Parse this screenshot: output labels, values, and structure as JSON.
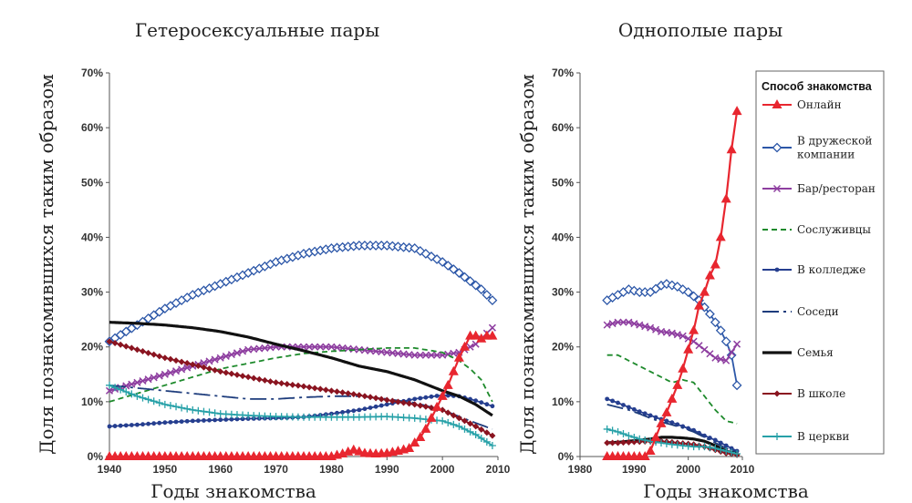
{
  "chart_data": [
    {
      "type": "line",
      "title": "Гетеросексуальные пары",
      "xlabel": "Годы знакомства",
      "ylabel": "Доля познакомившихся таким образом",
      "xlim": [
        1940,
        2010
      ],
      "ylim": [
        0,
        70
      ],
      "xticks": [
        "1940",
        "1950",
        "1960",
        "1970",
        "1980",
        "1990",
        "2000",
        "2010"
      ],
      "yticks": [
        "0%",
        "10%",
        "20%",
        "30%",
        "40%",
        "50%",
        "60%",
        "70%"
      ],
      "series": [
        {
          "name": "Онлайн",
          "x": [
            1940,
            1950,
            1960,
            1970,
            1975,
            1980,
            1982,
            1984,
            1986,
            1988,
            1990,
            1992,
            1994,
            1995,
            1996,
            1997,
            1998,
            1999,
            2000,
            2001,
            2002,
            2003,
            2004,
            2005,
            2006,
            2007,
            2008,
            2009
          ],
          "values": [
            0,
            0,
            0,
            0,
            0,
            0,
            0.5,
            1.2,
            0.6,
            0.5,
            0.6,
            1.0,
            1.5,
            2.5,
            3.5,
            5,
            7,
            9,
            11,
            13,
            15.5,
            18,
            20,
            22,
            22,
            21.5,
            22,
            22
          ]
        },
        {
          "name": "В дружеской компании",
          "x": [
            1940,
            1945,
            1950,
            1955,
            1960,
            1965,
            1970,
            1975,
            1980,
            1985,
            1990,
            1995,
            2000,
            2003,
            2005,
            2007,
            2009
          ],
          "values": [
            21,
            24,
            27,
            29.5,
            31.5,
            33.5,
            35.5,
            37,
            38,
            38.5,
            38.5,
            38,
            35.5,
            33.5,
            32,
            30.5,
            28.5
          ]
        },
        {
          "name": "Бар/ресторан",
          "x": [
            1940,
            1945,
            1950,
            1955,
            1960,
            1965,
            1970,
            1975,
            1980,
            1985,
            1990,
            1995,
            2000,
            2003,
            2006,
            2009
          ],
          "values": [
            12,
            13.5,
            15,
            16.5,
            18,
            19.5,
            20,
            20,
            20,
            19.5,
            19,
            18.5,
            18.5,
            19,
            20.5,
            23.5
          ]
        },
        {
          "name": "Сослуживцы",
          "x": [
            1940,
            1945,
            1950,
            1955,
            1960,
            1965,
            1970,
            1975,
            1980,
            1985,
            1990,
            1995,
            2000,
            2003,
            2005,
            2007,
            2009
          ],
          "values": [
            10,
            11.5,
            13,
            14.5,
            16,
            17,
            18,
            18.8,
            19.2,
            19.5,
            19.8,
            19.8,
            19,
            17.5,
            16,
            14,
            10
          ]
        },
        {
          "name": "В колледже",
          "x": [
            1940,
            1945,
            1950,
            1955,
            1960,
            1965,
            1970,
            1975,
            1980,
            1985,
            1990,
            1995,
            2000,
            2003,
            2006,
            2009
          ],
          "values": [
            5.5,
            5.8,
            6.2,
            6.5,
            6.7,
            6.9,
            7,
            7.2,
            7.8,
            8.5,
            9.5,
            10.5,
            11.2,
            11,
            10.2,
            9.2
          ]
        },
        {
          "name": "Соседи",
          "x": [
            1940,
            1945,
            1950,
            1955,
            1960,
            1965,
            1970,
            1975,
            1980,
            1985,
            1990,
            1995,
            2000,
            2005,
            2009
          ],
          "values": [
            13,
            12.5,
            12,
            11.5,
            11,
            10.5,
            10.5,
            10.8,
            11,
            11,
            10.5,
            9.8,
            8.5,
            6.5,
            5
          ]
        },
        {
          "name": "Семья",
          "x": [
            1940,
            1945,
            1950,
            1955,
            1960,
            1965,
            1970,
            1975,
            1980,
            1985,
            1990,
            1995,
            2000,
            2003,
            2006,
            2009
          ],
          "values": [
            24.5,
            24.3,
            24,
            23.5,
            22.8,
            21.8,
            20.5,
            19.3,
            18,
            16.5,
            15.5,
            14,
            12,
            11,
            9.5,
            7.5
          ]
        },
        {
          "name": "В школе",
          "x": [
            1940,
            1945,
            1950,
            1955,
            1960,
            1965,
            1970,
            1975,
            1980,
            1985,
            1990,
            1995,
            2000,
            2003,
            2006,
            2009
          ],
          "values": [
            21,
            19.5,
            18,
            16.8,
            15.5,
            14.5,
            13.5,
            12.8,
            12,
            11.2,
            10.3,
            9.5,
            8.5,
            7,
            5.5,
            3.8
          ]
        },
        {
          "name": "В церкви",
          "x": [
            1940,
            1945,
            1950,
            1955,
            1960,
            1965,
            1970,
            1975,
            1980,
            1985,
            1990,
            1995,
            2000,
            2003,
            2006,
            2009
          ],
          "values": [
            13,
            11,
            9.5,
            8.5,
            7.8,
            7.5,
            7.3,
            7.2,
            7.2,
            7.2,
            7.3,
            7,
            6.5,
            5.5,
            4,
            2
          ]
        }
      ]
    },
    {
      "type": "line",
      "title": "Однополые пары",
      "xlabel": "Годы знакомства",
      "ylabel": "Доля познакомившихся таким образом",
      "xlim": [
        1980,
        2010
      ],
      "ylim": [
        0,
        70
      ],
      "xticks": [
        "1980",
        "1990",
        "2000",
        "2010"
      ],
      "yticks": [
        "0%",
        "10%",
        "20%",
        "30%",
        "40%",
        "50%",
        "60%",
        "70%"
      ],
      "legend_title": "Способ знакомства",
      "legend_position": "right",
      "series": [
        {
          "name": "Онлайн",
          "x": [
            1985,
            1986,
            1987,
            1988,
            1989,
            1990,
            1991,
            1992,
            1993,
            1994,
            1995,
            1996,
            1997,
            1998,
            1999,
            2000,
            2001,
            2002,
            2003,
            2004,
            2005,
            2006,
            2007,
            2008,
            2009
          ],
          "values": [
            0,
            0,
            0,
            0,
            0,
            0,
            0,
            0,
            1,
            3.5,
            6,
            8,
            10.5,
            13,
            16,
            19.5,
            23,
            27.5,
            30,
            33,
            35,
            40,
            47,
            56,
            63
          ]
        },
        {
          "name": "В дружеской компании",
          "x": [
            1985,
            1987,
            1989,
            1991,
            1993,
            1995,
            1996,
            1998,
            2000,
            2002,
            2004,
            2006,
            2007,
            2008,
            2009
          ],
          "values": [
            28.5,
            29.5,
            30.5,
            30,
            30,
            31.2,
            31.5,
            31,
            30,
            28.5,
            26,
            23,
            21,
            18.5,
            13
          ]
        },
        {
          "name": "Бар/ресторан",
          "x": [
            1985,
            1987,
            1989,
            1991,
            1993,
            1995,
            1997,
            1999,
            2001,
            2003,
            2005,
            2007,
            2009
          ],
          "values": [
            24,
            24.5,
            24.5,
            24,
            23.5,
            22.8,
            22.5,
            22,
            21,
            19.5,
            18,
            17.5,
            20.5
          ]
        },
        {
          "name": "Сослуживцы",
          "x": [
            1985,
            1987,
            1989,
            1991,
            1993,
            1995,
            1997,
            1999,
            2001,
            2003,
            2005,
            2007,
            2009
          ],
          "values": [
            18.5,
            18.5,
            17.5,
            16.5,
            15.5,
            14.5,
            13.5,
            14,
            13.5,
            11,
            8.5,
            6.5,
            6
          ]
        },
        {
          "name": "В колледже",
          "x": [
            1985,
            1987,
            1989,
            1991,
            1993,
            1995,
            1997,
            1999,
            2001,
            2003,
            2005,
            2007,
            2009
          ],
          "values": [
            10.5,
            9.8,
            9,
            8.2,
            7.5,
            6.8,
            6.2,
            5.5,
            4.8,
            3.8,
            3,
            2,
            1
          ]
        },
        {
          "name": "Соседи",
          "x": [
            1985,
            1987,
            1989,
            1991,
            1993,
            1995,
            1997,
            1999,
            2001,
            2003,
            2005,
            2007,
            2009
          ],
          "values": [
            9.5,
            9,
            8.5,
            7.8,
            7,
            6.3,
            5.8,
            5.2,
            4.5,
            3.5,
            2.5,
            1.5,
            0.8
          ]
        },
        {
          "name": "Семья",
          "x": [
            1985,
            1987,
            1989,
            1991,
            1993,
            1995,
            1997,
            1999,
            2001,
            2003,
            2005,
            2007,
            2009
          ],
          "values": [
            2.5,
            2.6,
            2.8,
            3,
            3.2,
            3.5,
            3.5,
            3.4,
            3.2,
            2.8,
            2,
            1,
            0.5
          ]
        },
        {
          "name": "В школе",
          "x": [
            1985,
            1987,
            1989,
            1991,
            1993,
            1995,
            1997,
            1999,
            2001,
            2003,
            2005,
            2007,
            2009
          ],
          "values": [
            2.5,
            2.5,
            2.6,
            2.7,
            2.8,
            2.8,
            2.6,
            2.4,
            2.2,
            1.8,
            1.2,
            0.6,
            0.3
          ]
        },
        {
          "name": "В церкви",
          "x": [
            1985,
            1987,
            1989,
            1991,
            1993,
            1995,
            1997,
            1999,
            2001,
            2003,
            2005,
            2007,
            2009
          ],
          "values": [
            5,
            4.5,
            3.8,
            3.2,
            2.8,
            2.5,
            2.2,
            2,
            1.8,
            1.8,
            1.5,
            1,
            0.5
          ]
        }
      ]
    }
  ],
  "styles": [
    {
      "name": "Онлайн",
      "color": "#e8262f",
      "marker": "triangle",
      "dash": ""
    },
    {
      "name": "В дружеской компании",
      "color": "#2c57a8",
      "marker": "diamond-open",
      "dash": ""
    },
    {
      "name": "Бар/ресторан",
      "color": "#8e3ea0",
      "marker": "x",
      "dash": ""
    },
    {
      "name": "Сослуживцы",
      "color": "#1e8a2c",
      "marker": "none",
      "dash": "6,4"
    },
    {
      "name": "В колледже",
      "color": "#253e8f",
      "marker": "dot",
      "dash": ""
    },
    {
      "name": "Соседи",
      "color": "#1d3c7c",
      "marker": "none",
      "dash": "18,5,3,5"
    },
    {
      "name": "Семья",
      "color": "#111111",
      "marker": "none",
      "dash": ""
    },
    {
      "name": "В школе",
      "color": "#8a1420",
      "marker": "diamond",
      "dash": ""
    },
    {
      "name": "В церкви",
      "color": "#27a1a8",
      "marker": "plus",
      "dash": ""
    }
  ],
  "legend_labels": [
    [
      "Онлайн"
    ],
    [
      "В дружеской",
      "компании"
    ],
    [
      "Бар/ресторан"
    ],
    [
      "Сослуживцы"
    ],
    [
      "В колледже"
    ],
    [
      "Соседи"
    ],
    [
      "Семья"
    ],
    [
      "В школе"
    ],
    [
      "В церкви"
    ]
  ]
}
